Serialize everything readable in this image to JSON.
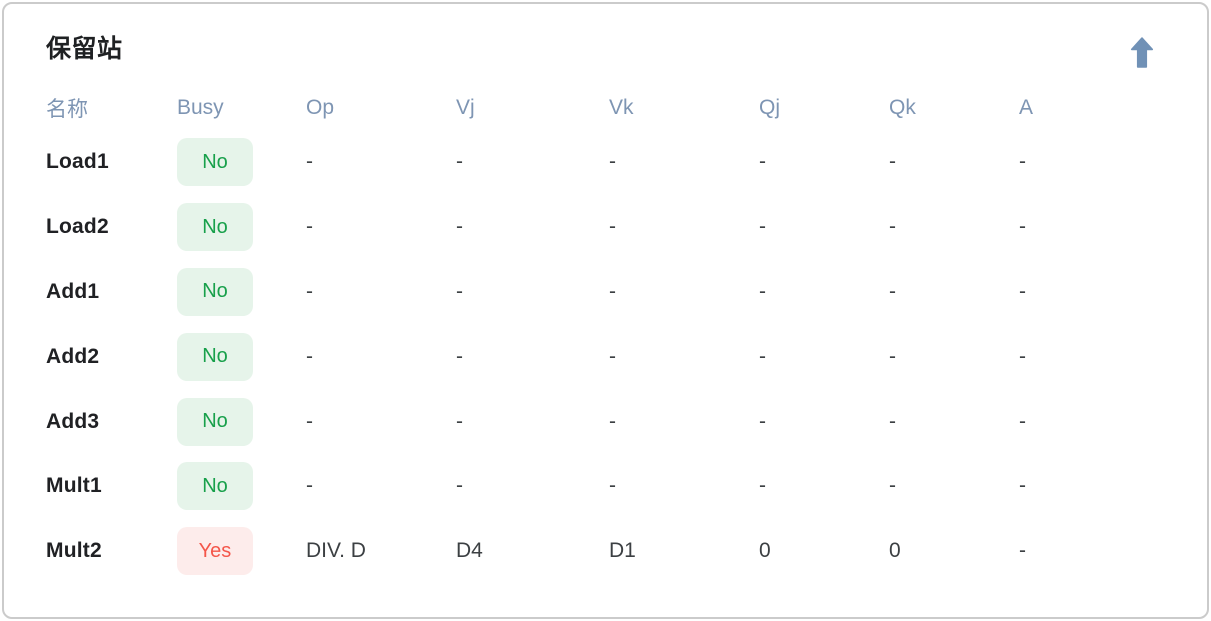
{
  "title": "保留站",
  "toolbar": {
    "scroll_top_icon": "arrow-up-icon"
  },
  "colors": {
    "card_border": "#cbcbcb",
    "header_text": "#7e95b3",
    "row_name_text": "#202124",
    "value_text": "#3c4043",
    "badge_no_text": "#18a04b",
    "badge_no_bg": "#e6f4ea",
    "badge_yes_text": "#f4564a",
    "badge_yes_bg": "#fdeceb",
    "arrow": "#7091b6"
  },
  "table": {
    "columns": [
      {
        "key": "name",
        "label": "名称"
      },
      {
        "key": "busy",
        "label": "Busy"
      },
      {
        "key": "op",
        "label": "Op"
      },
      {
        "key": "vj",
        "label": "Vj"
      },
      {
        "key": "vk",
        "label": "Vk"
      },
      {
        "key": "qj",
        "label": "Qj"
      },
      {
        "key": "qk",
        "label": "Qk"
      },
      {
        "key": "a",
        "label": "A"
      }
    ],
    "rows": [
      {
        "name": "Load1",
        "busy": "No",
        "op": "-",
        "vj": "-",
        "vk": "-",
        "qj": "-",
        "qk": "-",
        "a": "-"
      },
      {
        "name": "Load2",
        "busy": "No",
        "op": "-",
        "vj": "-",
        "vk": "-",
        "qj": "-",
        "qk": "-",
        "a": "-"
      },
      {
        "name": "Add1",
        "busy": "No",
        "op": "-",
        "vj": "-",
        "vk": "-",
        "qj": "-",
        "qk": "-",
        "a": "-"
      },
      {
        "name": "Add2",
        "busy": "No",
        "op": "-",
        "vj": "-",
        "vk": "-",
        "qj": "-",
        "qk": "-",
        "a": "-"
      },
      {
        "name": "Add3",
        "busy": "No",
        "op": "-",
        "vj": "-",
        "vk": "-",
        "qj": "-",
        "qk": "-",
        "a": "-"
      },
      {
        "name": "Mult1",
        "busy": "No",
        "op": "-",
        "vj": "-",
        "vk": "-",
        "qj": "-",
        "qk": "-",
        "a": "-"
      },
      {
        "name": "Mult2",
        "busy": "Yes",
        "op": "DIV. D",
        "vj": "D4",
        "vk": "D1",
        "qj": "0",
        "qk": "0",
        "a": "-"
      }
    ]
  }
}
